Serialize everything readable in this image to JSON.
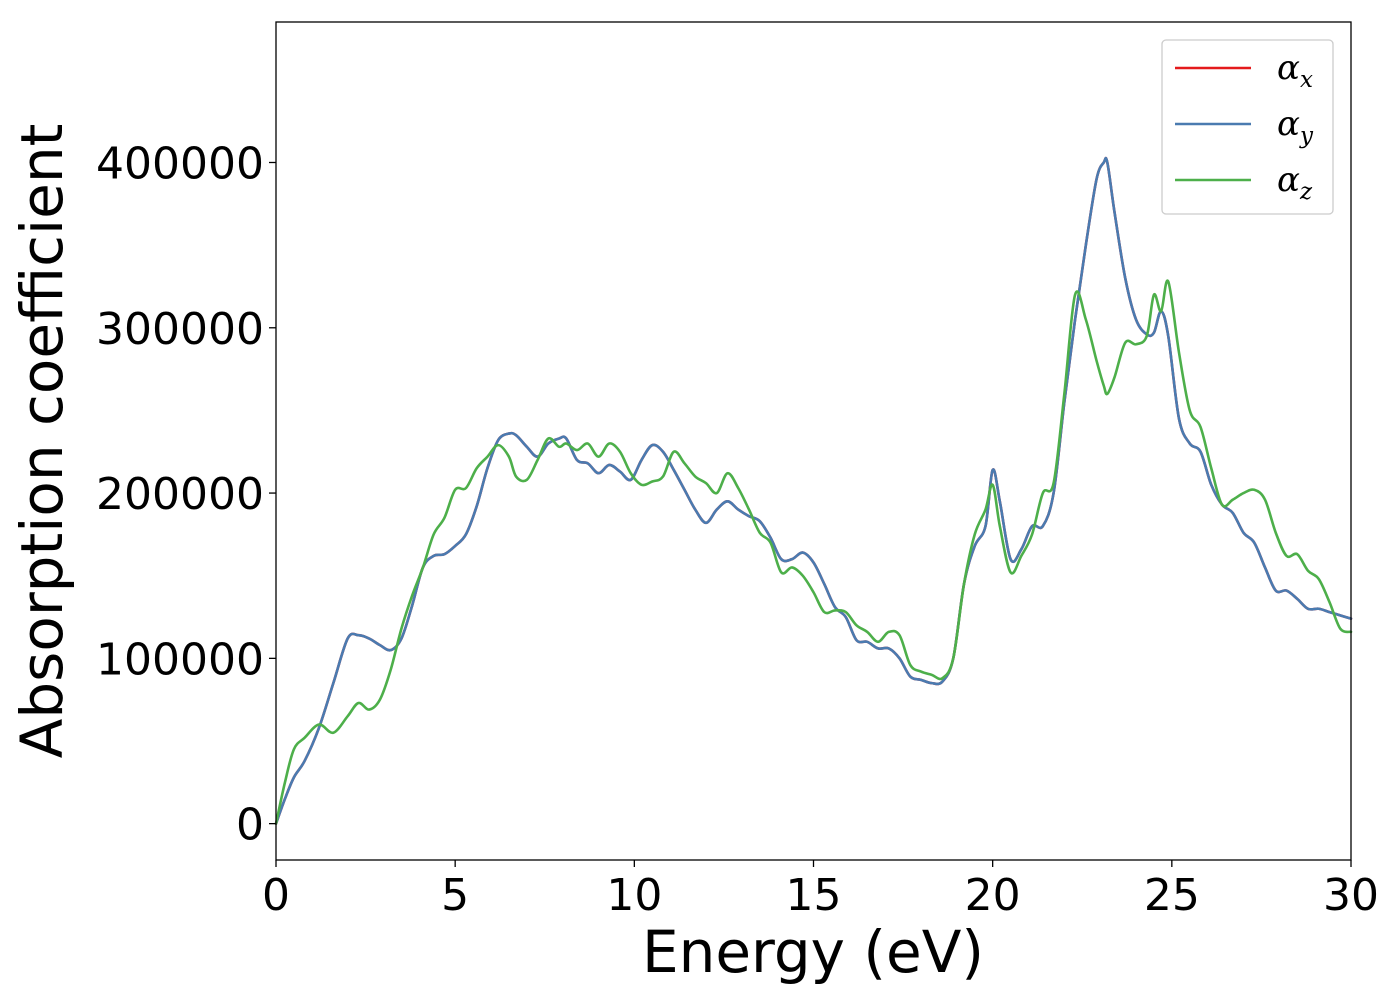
{
  "chart_data": {
    "type": "line",
    "title": "",
    "xlabel": "Energy (eV)",
    "ylabel": "Absorption coefficient",
    "xlim": [
      0,
      30
    ],
    "ylim": [
      -22000,
      485000
    ],
    "xticks": [
      0,
      5,
      10,
      15,
      20,
      25,
      30
    ],
    "yticks": [
      0,
      100000,
      200000,
      300000,
      400000
    ],
    "xtick_labels": [
      "0",
      "5",
      "10",
      "15",
      "20",
      "25",
      "30"
    ],
    "ytick_labels": [
      "0",
      "100000",
      "200000",
      "300000",
      "400000"
    ],
    "grid": false,
    "legend_position": "top-right",
    "series": [
      {
        "name": "α_x",
        "legend_symbol": "α",
        "legend_sub": "x",
        "color": "#e41a1c",
        "x": [
          0,
          0.25,
          0.5,
          0.8,
          1.2,
          1.6,
          2.0,
          2.3,
          2.6,
          2.9,
          3.2,
          3.5,
          3.8,
          4.1,
          4.4,
          4.7,
          5.0,
          5.3,
          5.6,
          5.9,
          6.2,
          6.5,
          6.7,
          7.0,
          7.3,
          7.6,
          7.9,
          8.1,
          8.4,
          8.7,
          9.0,
          9.3,
          9.6,
          9.9,
          10.2,
          10.5,
          10.8,
          11.1,
          11.4,
          11.7,
          12.0,
          12.3,
          12.6,
          12.9,
          13.2,
          13.5,
          13.8,
          14.1,
          14.4,
          14.7,
          15.0,
          15.3,
          15.6,
          15.9,
          16.2,
          16.5,
          16.8,
          17.1,
          17.4,
          17.7,
          18.0,
          18.3,
          18.6,
          18.9,
          19.2,
          19.5,
          19.8,
          20.0,
          20.2,
          20.5,
          20.8,
          21.1,
          21.4,
          21.7,
          22.0,
          22.3,
          22.6,
          22.9,
          23.1,
          23.2,
          23.4,
          23.7,
          24.0,
          24.3,
          24.5,
          24.7,
          24.9,
          25.2,
          25.5,
          25.8,
          26.1,
          26.4,
          26.7,
          27.0,
          27.3,
          27.6,
          27.9,
          28.2,
          28.5,
          28.8,
          29.1,
          29.4,
          29.7,
          30.0
        ],
        "y": [
          0,
          15000,
          28000,
          38000,
          58000,
          85000,
          112000,
          114000,
          112000,
          108000,
          105000,
          112000,
          132000,
          155000,
          162000,
          163000,
          168000,
          175000,
          192000,
          215000,
          232000,
          236000,
          235000,
          228000,
          222000,
          230000,
          233000,
          233000,
          220000,
          218000,
          212000,
          217000,
          213000,
          208000,
          220000,
          229000,
          225000,
          214000,
          202000,
          190000,
          182000,
          190000,
          195000,
          190000,
          186000,
          183000,
          173000,
          160000,
          160000,
          164000,
          158000,
          145000,
          131000,
          125000,
          111000,
          110000,
          106000,
          106000,
          100000,
          89000,
          87000,
          85000,
          86000,
          100000,
          145000,
          168000,
          180000,
          214000,
          195000,
          160000,
          166000,
          180000,
          180000,
          200000,
          255000,
          305000,
          350000,
          390000,
          400000,
          400000,
          370000,
          330000,
          305000,
          296000,
          297000,
          310000,
          295000,
          245000,
          230000,
          225000,
          205000,
          193000,
          188000,
          176000,
          170000,
          155000,
          141000,
          141000,
          136000,
          130000,
          130000,
          128000,
          126000,
          124000
        ]
      },
      {
        "name": "α_y",
        "legend_symbol": "α",
        "legend_sub": "y",
        "color": "#4a7bb0",
        "x": [
          0,
          0.25,
          0.5,
          0.8,
          1.2,
          1.6,
          2.0,
          2.3,
          2.6,
          2.9,
          3.2,
          3.5,
          3.8,
          4.1,
          4.4,
          4.7,
          5.0,
          5.3,
          5.6,
          5.9,
          6.2,
          6.5,
          6.7,
          7.0,
          7.3,
          7.6,
          7.9,
          8.1,
          8.4,
          8.7,
          9.0,
          9.3,
          9.6,
          9.9,
          10.2,
          10.5,
          10.8,
          11.1,
          11.4,
          11.7,
          12.0,
          12.3,
          12.6,
          12.9,
          13.2,
          13.5,
          13.8,
          14.1,
          14.4,
          14.7,
          15.0,
          15.3,
          15.6,
          15.9,
          16.2,
          16.5,
          16.8,
          17.1,
          17.4,
          17.7,
          18.0,
          18.3,
          18.6,
          18.9,
          19.2,
          19.5,
          19.8,
          20.0,
          20.2,
          20.5,
          20.8,
          21.1,
          21.4,
          21.7,
          22.0,
          22.3,
          22.6,
          22.9,
          23.1,
          23.2,
          23.4,
          23.7,
          24.0,
          24.3,
          24.5,
          24.7,
          24.9,
          25.2,
          25.5,
          25.8,
          26.1,
          26.4,
          26.7,
          27.0,
          27.3,
          27.6,
          27.9,
          28.2,
          28.5,
          28.8,
          29.1,
          29.4,
          29.7,
          30.0
        ],
        "y": [
          0,
          15000,
          28000,
          38000,
          58000,
          85000,
          112000,
          114000,
          112000,
          108000,
          105000,
          112000,
          132000,
          155000,
          162000,
          163000,
          168000,
          175000,
          192000,
          215000,
          232000,
          236000,
          235000,
          228000,
          222000,
          230000,
          233000,
          233000,
          220000,
          218000,
          212000,
          217000,
          213000,
          208000,
          220000,
          229000,
          225000,
          214000,
          202000,
          190000,
          182000,
          190000,
          195000,
          190000,
          186000,
          183000,
          173000,
          160000,
          160000,
          164000,
          158000,
          145000,
          131000,
          125000,
          111000,
          110000,
          106000,
          106000,
          100000,
          89000,
          87000,
          85000,
          86000,
          100000,
          145000,
          168000,
          180000,
          214000,
          195000,
          160000,
          166000,
          180000,
          180000,
          200000,
          255000,
          305000,
          350000,
          390000,
          400000,
          400000,
          370000,
          330000,
          305000,
          296000,
          297000,
          310000,
          295000,
          245000,
          230000,
          225000,
          205000,
          193000,
          188000,
          176000,
          170000,
          155000,
          141000,
          141000,
          136000,
          130000,
          130000,
          128000,
          126000,
          124000
        ]
      },
      {
        "name": "α_z",
        "legend_symbol": "α",
        "legend_sub": "z",
        "color": "#4daf4a",
        "x": [
          0,
          0.25,
          0.5,
          0.8,
          1.2,
          1.6,
          2.0,
          2.3,
          2.6,
          2.9,
          3.2,
          3.5,
          3.8,
          4.1,
          4.4,
          4.7,
          5.0,
          5.3,
          5.6,
          5.9,
          6.2,
          6.5,
          6.7,
          7.0,
          7.3,
          7.6,
          7.9,
          8.1,
          8.4,
          8.7,
          9.0,
          9.3,
          9.6,
          9.9,
          10.2,
          10.5,
          10.8,
          11.1,
          11.4,
          11.7,
          12.0,
          12.3,
          12.6,
          12.9,
          13.2,
          13.5,
          13.8,
          14.1,
          14.4,
          14.7,
          15.0,
          15.3,
          15.6,
          15.9,
          16.2,
          16.5,
          16.8,
          17.1,
          17.4,
          17.7,
          18.0,
          18.3,
          18.6,
          18.9,
          19.2,
          19.5,
          19.8,
          20.0,
          20.2,
          20.5,
          20.8,
          21.1,
          21.4,
          21.7,
          22.0,
          22.3,
          22.6,
          22.9,
          23.1,
          23.2,
          23.4,
          23.7,
          24.0,
          24.3,
          24.5,
          24.7,
          24.9,
          25.2,
          25.5,
          25.8,
          26.1,
          26.4,
          26.7,
          27.0,
          27.3,
          27.6,
          27.9,
          28.2,
          28.5,
          28.8,
          29.1,
          29.4,
          29.7,
          30.0
        ],
        "y": [
          0,
          25000,
          45000,
          52000,
          60000,
          55000,
          65000,
          73000,
          69000,
          75000,
          93000,
          118000,
          138000,
          155000,
          175000,
          185000,
          202000,
          203000,
          215000,
          222000,
          229000,
          222000,
          210000,
          208000,
          220000,
          233000,
          228000,
          230000,
          226000,
          230000,
          222000,
          230000,
          225000,
          212000,
          205000,
          207000,
          210000,
          225000,
          218000,
          210000,
          206000,
          200000,
          212000,
          203000,
          190000,
          176000,
          170000,
          152000,
          155000,
          150000,
          140000,
          128000,
          129000,
          128000,
          120000,
          116000,
          110000,
          116000,
          114000,
          96000,
          92000,
          90000,
          88000,
          100000,
          145000,
          175000,
          190000,
          205000,
          180000,
          152000,
          162000,
          175000,
          200000,
          206000,
          260000,
          320000,
          305000,
          280000,
          265000,
          260000,
          270000,
          291000,
          290000,
          295000,
          320000,
          310000,
          328000,
          285000,
          250000,
          240000,
          215000,
          193000,
          196000,
          200000,
          202000,
          196000,
          176000,
          162000,
          163000,
          153000,
          148000,
          134000,
          118000,
          116000
        ]
      }
    ]
  }
}
